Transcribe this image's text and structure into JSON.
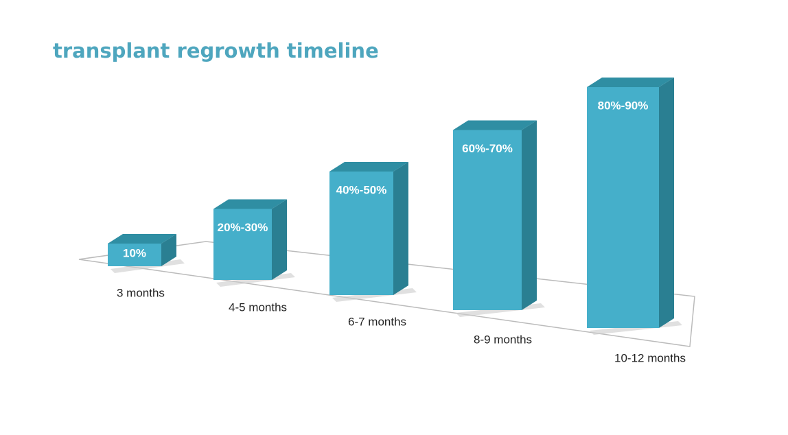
{
  "chart_data": {
    "type": "bar3d",
    "title": "transplant regrowth timeline",
    "categories": [
      "3 months",
      "4-5 months",
      "6-7 months",
      "8-9 months",
      "10-12 months"
    ],
    "values": [
      10,
      20,
      40,
      60,
      80
    ],
    "values_high": [
      null,
      30,
      50,
      70,
      90
    ],
    "value_labels": [
      "10%",
      "20%-30%",
      "40%-50%",
      "60%-70%",
      "80%-90%"
    ],
    "color": "#45afca"
  }
}
